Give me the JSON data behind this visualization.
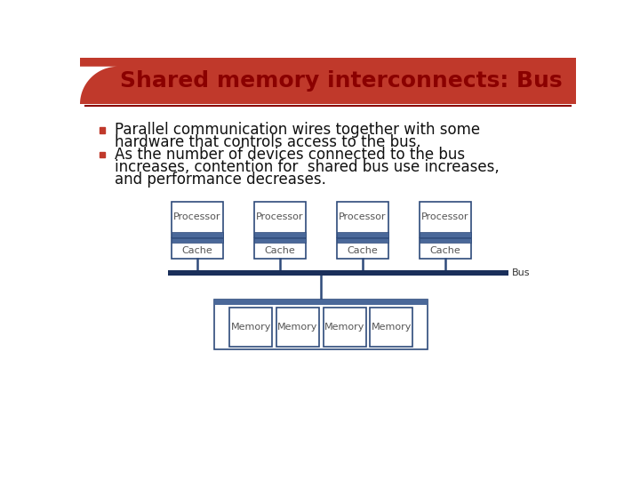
{
  "title": "Shared memory interconnects: Bus",
  "title_color": "#8B0000",
  "title_fontsize": 18,
  "bg_color": "#FFFFFF",
  "header_bg_color": "#C0392B",
  "bullet_color": "#C0392B",
  "bullet1_line1": "Parallel communication wires together with some",
  "bullet1_line2": "hardware that controls access to the bus.",
  "bullet2_line1": "As the number of devices connected to the bus",
  "bullet2_line2": "increases, contention for  shared bus use increases,",
  "bullet2_line3": "and performance decreases.",
  "text_color": "#111111",
  "text_fontsize": 12,
  "box_edge_color": "#2E4A7A",
  "box_fill": "#FFFFFF",
  "box_stripe_color": "#4A6899",
  "bus_color": "#1A2F5A",
  "bus_label_color": "#333333",
  "processor_labels": [
    "Processor",
    "Processor",
    "Processor",
    "Processor"
  ],
  "cache_labels": [
    "Cache",
    "Cache",
    "Cache",
    "Cache"
  ],
  "memory_labels": [
    "Memory",
    "Memory",
    "Memory",
    "Memory"
  ]
}
